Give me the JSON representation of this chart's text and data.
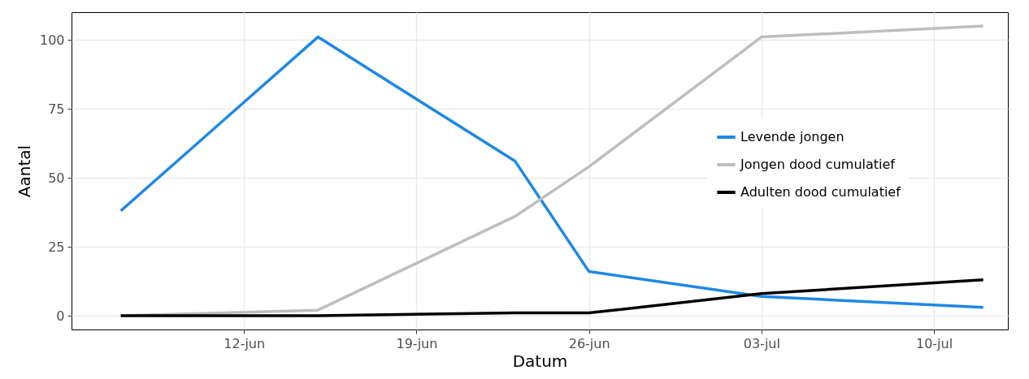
{
  "chart_data": {
    "type": "line",
    "xlabel": "Datum",
    "ylabel": "Aantal",
    "x": [
      "--06-07",
      "--06-15",
      "--06-23",
      "--06-26",
      "--07-03",
      "--07-12"
    ],
    "series": [
      {
        "name": "Levende jongen",
        "color": "#1e88e5",
        "values": [
          38,
          101,
          56,
          16,
          7,
          3
        ]
      },
      {
        "name": "Jongen dood cumulatief",
        "color": "#bebebe",
        "values": [
          0,
          2,
          36,
          54,
          101,
          105
        ]
      },
      {
        "name": "Adulten dood cumulatief",
        "color": "#000000",
        "values": [
          0,
          0,
          1,
          1,
          8,
          13
        ]
      }
    ],
    "xlim": [
      "--06-05",
      "--07-13"
    ],
    "xticks": [
      {
        "value": "--06-12",
        "label": "12-jun"
      },
      {
        "value": "--06-19",
        "label": "19-jun"
      },
      {
        "value": "--06-26",
        "label": "26-jun"
      },
      {
        "value": "--07-03",
        "label": "03-jul"
      },
      {
        "value": "--07-10",
        "label": "10-jul"
      }
    ],
    "ylim": [
      -5,
      110
    ],
    "yticks": [
      0,
      25,
      50,
      75,
      100
    ],
    "grid": true,
    "legend": "right",
    "marker": "none",
    "line_style": "solid"
  }
}
